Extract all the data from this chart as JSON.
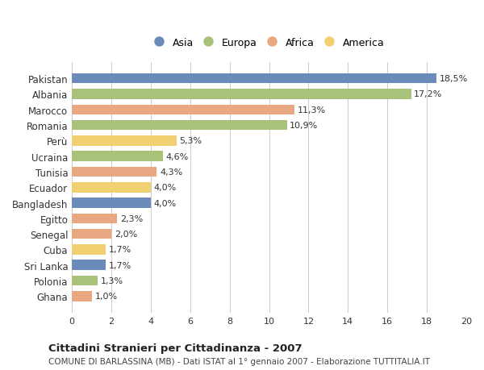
{
  "categories": [
    "Pakistan",
    "Albania",
    "Marocco",
    "Romania",
    "Perù",
    "Ucraina",
    "Tunisia",
    "Ecuador",
    "Bangladesh",
    "Egitto",
    "Senegal",
    "Cuba",
    "Sri Lanka",
    "Polonia",
    "Ghana"
  ],
  "values": [
    18.5,
    17.2,
    11.3,
    10.9,
    5.3,
    4.6,
    4.3,
    4.0,
    4.0,
    2.3,
    2.0,
    1.7,
    1.7,
    1.3,
    1.0
  ],
  "labels": [
    "18,5%",
    "17,2%",
    "11,3%",
    "10,9%",
    "5,3%",
    "4,6%",
    "4,3%",
    "4,0%",
    "4,0%",
    "2,3%",
    "2,0%",
    "1,7%",
    "1,7%",
    "1,3%",
    "1,0%"
  ],
  "continents": [
    "Asia",
    "Europa",
    "Africa",
    "Europa",
    "America",
    "Europa",
    "Africa",
    "America",
    "Asia",
    "Africa",
    "Africa",
    "America",
    "Asia",
    "Europa",
    "Africa"
  ],
  "continent_colors": {
    "Asia": "#6b8cba",
    "Europa": "#a8c27a",
    "Africa": "#e8a882",
    "America": "#f0d070"
  },
  "legend_order": [
    "Asia",
    "Europa",
    "Africa",
    "America"
  ],
  "xlim": [
    0,
    20
  ],
  "xticks": [
    0,
    2,
    4,
    6,
    8,
    10,
    12,
    14,
    16,
    18,
    20
  ],
  "title": "Cittadini Stranieri per Cittadinanza - 2007",
  "subtitle": "COMUNE DI BARLASSINA (MB) - Dati ISTAT al 1° gennaio 2007 - Elaborazione TUTTITALIA.IT",
  "background_color": "#ffffff",
  "grid_color": "#cccccc",
  "bar_height": 0.65,
  "figsize": [
    6.0,
    4.6
  ],
  "dpi": 100
}
